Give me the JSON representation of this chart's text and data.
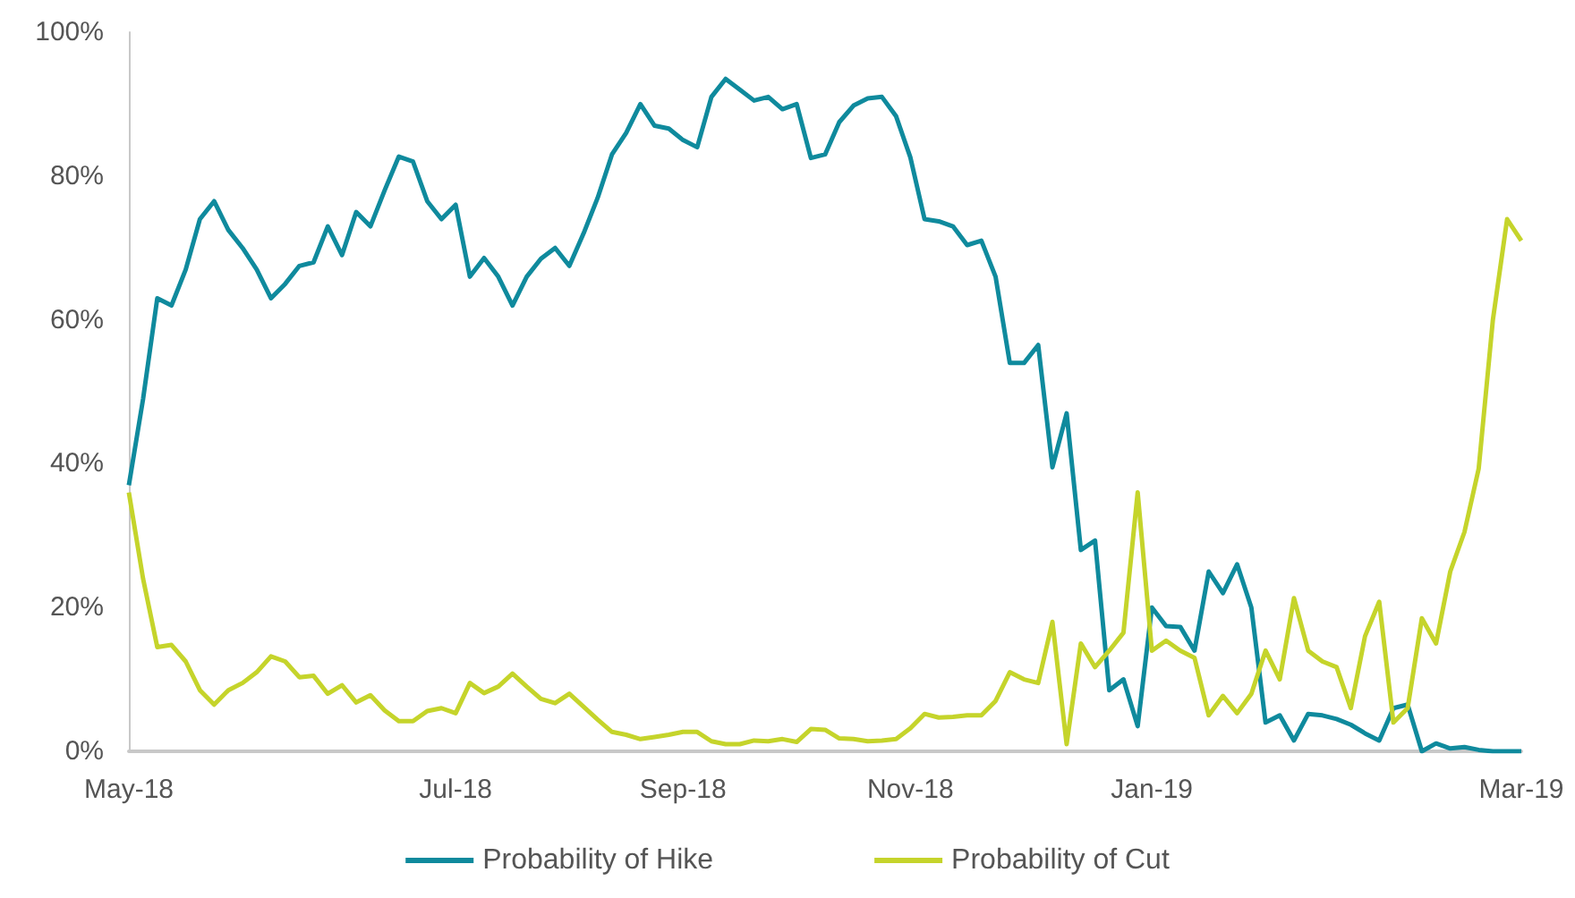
{
  "chart_data": {
    "type": "line",
    "categories": [
      "May-18",
      null,
      null,
      null,
      null,
      null,
      null,
      null,
      null,
      null,
      null,
      null,
      null,
      null,
      null,
      null,
      null,
      null,
      null,
      null,
      null,
      null,
      null,
      "Jul-18",
      null,
      null,
      null,
      null,
      null,
      null,
      null,
      null,
      null,
      null,
      null,
      null,
      null,
      null,
      null,
      "Sep-18",
      null,
      null,
      null,
      null,
      null,
      null,
      null,
      null,
      null,
      null,
      null,
      null,
      null,
      null,
      null,
      "Nov-18",
      null,
      null,
      null,
      null,
      null,
      null,
      null,
      null,
      null,
      null,
      null,
      null,
      null,
      null,
      null,
      null,
      "Jan-19",
      null,
      null,
      null,
      null,
      null,
      null,
      null,
      null,
      null,
      null,
      null,
      null,
      null,
      null,
      null,
      null,
      null,
      null,
      null,
      null,
      null,
      null,
      null,
      null,
      null,
      "Mar-19"
    ],
    "series": [
      {
        "name": "Probability of Hike",
        "color": "#0f8a9d",
        "values": [
          37,
          49,
          63,
          62,
          67,
          74,
          76.5,
          72.5,
          70,
          67,
          63,
          65,
          67.5,
          68,
          73,
          69,
          75,
          73,
          78,
          82.7,
          82,
          76.5,
          74,
          76,
          66,
          68.6,
          66,
          62,
          66,
          68.5,
          70,
          67.5,
          72,
          77,
          83,
          86,
          90,
          87,
          86.6,
          85,
          84,
          91,
          93.5,
          92,
          90.5,
          91,
          89.3,
          90,
          82.5,
          83,
          87.5,
          89.8,
          90.8,
          91,
          88.3,
          82.6,
          74,
          73.7,
          73,
          70.4,
          71,
          66,
          54,
          54,
          56.5,
          39.5,
          47,
          28,
          29.3,
          8.5,
          10,
          3.5,
          20,
          17.4,
          17.3,
          14,
          25,
          22,
          26,
          20,
          4,
          5,
          1.5,
          5.2,
          5,
          4.5,
          3.7,
          2.5,
          1.5,
          6,
          6.5,
          0,
          1.1,
          0.4,
          0.6,
          0.2,
          0,
          0,
          0
        ]
      },
      {
        "name": "Probability of Cut",
        "color": "#c5d42b",
        "values": [
          36,
          24,
          14.5,
          14.8,
          12.5,
          8.5,
          6.5,
          8.5,
          9.5,
          11,
          13.2,
          12.5,
          10.3,
          10.5,
          8,
          9.2,
          6.8,
          7.8,
          5.7,
          4.2,
          4.2,
          5.6,
          6,
          5.3,
          9.5,
          8.1,
          9,
          10.8,
          9,
          7.3,
          6.7,
          8,
          6.2,
          4.4,
          2.7,
          2.3,
          1.7,
          2,
          2.3,
          2.7,
          2.7,
          1.4,
          1,
          1,
          1.5,
          1.4,
          1.7,
          1.3,
          3.1,
          3,
          1.8,
          1.7,
          1.4,
          1.5,
          1.7,
          3.2,
          5.2,
          4.7,
          4.8,
          5,
          5,
          7,
          11,
          10,
          9.5,
          18,
          1,
          15,
          11.7,
          14,
          16.5,
          36,
          14,
          15.4,
          14,
          13,
          5,
          7.7,
          5.3,
          8,
          14,
          10,
          21.3,
          14,
          12.5,
          11.7,
          6,
          16,
          20.8,
          4,
          6,
          18.5,
          15,
          25,
          30.5,
          39.3,
          60,
          74,
          71
        ]
      }
    ],
    "ylim": [
      0,
      100
    ],
    "yticks": [
      {
        "value": 0,
        "label": "0%"
      },
      {
        "value": 20,
        "label": "20%"
      },
      {
        "value": 40,
        "label": "40%"
      },
      {
        "value": 60,
        "label": "60%"
      },
      {
        "value": 80,
        "label": "80%"
      },
      {
        "value": 100,
        "label": "100%"
      }
    ],
    "legend": "bottom"
  }
}
